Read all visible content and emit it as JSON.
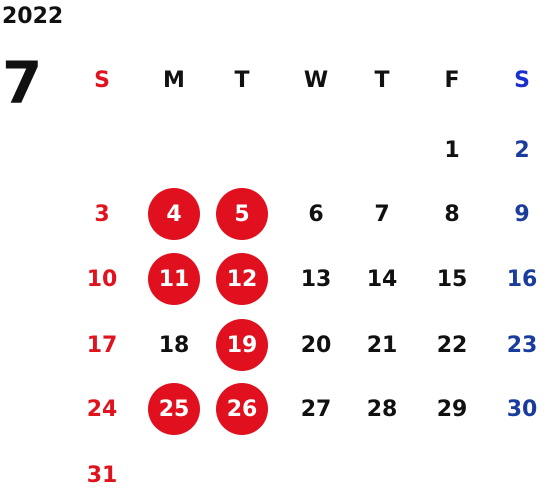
{
  "calendar": {
    "year": "2022",
    "month": "7",
    "weekdays": [
      "S",
      "M",
      "T",
      "W",
      "T",
      "F",
      "S"
    ],
    "weeks": [
      [
        "",
        "",
        "",
        "",
        "",
        "1",
        "2"
      ],
      [
        "3",
        "4",
        "5",
        "6",
        "7",
        "8",
        "9"
      ],
      [
        "10",
        "11",
        "12",
        "13",
        "14",
        "15",
        "16"
      ],
      [
        "17",
        "18",
        "19",
        "20",
        "21",
        "22",
        "23"
      ],
      [
        "24",
        "25",
        "26",
        "27",
        "28",
        "29",
        "30"
      ],
      [
        "31",
        "",
        "",
        "",
        "",
        "",
        ""
      ]
    ],
    "highlighted_days": [
      "4",
      "5",
      "11",
      "12",
      "19",
      "25",
      "26"
    ]
  },
  "colors": {
    "sunday": "#e0141e",
    "saturday": "#1a3c9c",
    "saturday_header": "#1a2fd0",
    "highlight": "#e0101e",
    "default": "#111111"
  }
}
